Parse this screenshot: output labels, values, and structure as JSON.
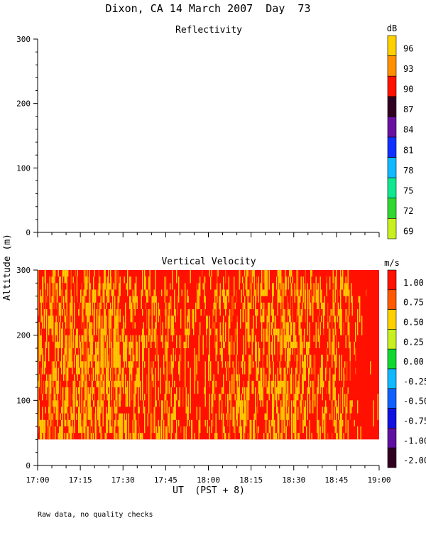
{
  "figure": {
    "title": "Dixon, CA 14 March 2007  Day  73",
    "y_label": "Altitude (m)",
    "x_label": "UT  (PST + 8)",
    "footer_note": "Raw data, no quality checks"
  },
  "chart_data": [
    {
      "type": "heatmap",
      "title": "Reflectivity",
      "xlabel": "UT  (PST + 8)",
      "ylabel": "Altitude (m)",
      "x_range": [
        "17:00",
        "19:00"
      ],
      "ylim": [
        0,
        300
      ],
      "y_ticks": [
        0,
        100,
        200,
        300
      ],
      "data": "no data shown",
      "colorbar": {
        "unit": "dB",
        "labels": [
          "96",
          "93",
          "90",
          "87",
          "84",
          "81",
          "78",
          "75",
          "72",
          "69"
        ],
        "colors": [
          "#ffd000",
          "#ff9000",
          "#ff1000",
          "#300020",
          "#6a10a0",
          "#1030ff",
          "#10b8ff",
          "#10e890",
          "#30d830",
          "#c8f020"
        ]
      }
    },
    {
      "type": "heatmap",
      "title": "Vertical Velocity",
      "xlabel": "UT  (PST + 8)",
      "ylabel": "Altitude (m)",
      "x_range": [
        "17:00",
        "19:00"
      ],
      "x_ticks": [
        "17:00",
        "17:15",
        "17:30",
        "17:45",
        "18:00",
        "18:15",
        "18:30",
        "18:45",
        "19:00"
      ],
      "ylim": [
        0,
        300
      ],
      "y_ticks": [
        0,
        100,
        200,
        300
      ],
      "data_altitude_range": [
        40,
        300
      ],
      "dominant_values": [
        "1.00",
        "0.50"
      ],
      "colorbar": {
        "unit": "m/s",
        "labels": [
          "1.00",
          "0.75",
          "0.50",
          "0.25",
          "0.00",
          "-0.25",
          "-0.50",
          "-0.75",
          "-1.00",
          "-2.00"
        ],
        "colors": [
          "#ff1000",
          "#ff5a00",
          "#ffd000",
          "#c8f020",
          "#10d830",
          "#10b8ff",
          "#1060ff",
          "#1010e0",
          "#6010a0",
          "#300020"
        ]
      }
    }
  ]
}
